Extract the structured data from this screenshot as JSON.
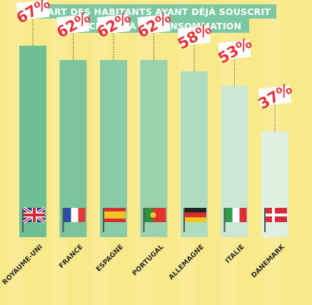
{
  "chart_data": {
    "type": "bar",
    "title_lines": [
      "PART DES HABITANTS AYANT DÉJÀ SOUSCRIT",
      "UN CRÉDIT À LA CONSOMMATION"
    ],
    "categories": [
      "ROYAUME-UNI",
      "FRANCE",
      "ESPAGNE",
      "PORTUGAL",
      "ALLEMAGNE",
      "ITALIE",
      "DANEMARK"
    ],
    "values": [
      67,
      62,
      62,
      62,
      58,
      53,
      37
    ],
    "value_labels": [
      "67%",
      "62%",
      "62%",
      "62%",
      "58%",
      "53%",
      "37%"
    ],
    "flags": [
      "uk-flag-icon",
      "france-flag-icon",
      "spain-flag-icon",
      "portugal-flag-icon",
      "germany-flag-icon",
      "italy-flag-icon",
      "denmark-flag-icon"
    ],
    "ylim": [
      0,
      70
    ],
    "colors": {
      "background": "#f8e98a",
      "title_band": "#7cc8a2",
      "value_text": "#e2353b",
      "bars": [
        "#6fbf95",
        "#7cc59c",
        "#88cba4",
        "#9ad2ae",
        "#b0dcbf",
        "#c9e7d2",
        "#dff0e3"
      ]
    }
  }
}
